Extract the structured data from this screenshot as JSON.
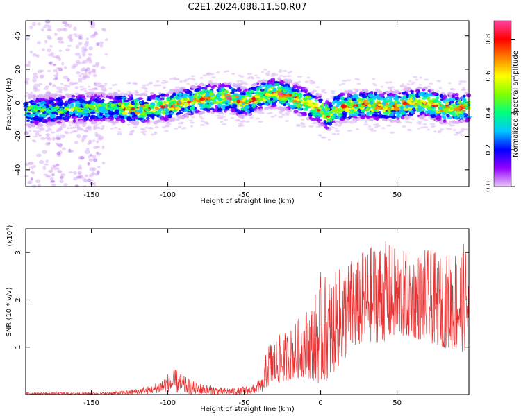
{
  "title": "C2E1.2024.088.11.50.R07",
  "chart_data": [
    {
      "type": "heatmap",
      "xlabel": "Height of straight line (km)",
      "ylabel": "Frequency (Hz)",
      "xlim": [
        -193,
        97
      ],
      "ylim": [
        -50,
        49
      ],
      "xticks": [
        -150,
        -100,
        -50,
        0,
        50
      ],
      "yticks": [
        -40,
        -20,
        0,
        20,
        40
      ],
      "colorbar": {
        "label": "Normalized spectral amplitude",
        "range": [
          0.0,
          0.9
        ],
        "ticks": [
          0.0,
          0.2,
          0.4,
          0.6,
          0.8
        ],
        "colors": [
          "#e8c8f8",
          "#9400ff",
          "#0000ff",
          "#00c8ff",
          "#00ff80",
          "#80ff00",
          "#ffff00",
          "#ff8000",
          "#ff0000",
          "#ff40a0"
        ]
      },
      "ridge": {
        "x": [
          -193,
          -170,
          -150,
          -130,
          -120,
          -110,
          -100,
          -90,
          -80,
          -70,
          -60,
          -50,
          -45,
          -40,
          -35,
          -30,
          -25,
          -20,
          -15,
          -10,
          -5,
          0,
          5,
          10,
          20,
          30,
          40,
          50,
          60,
          70,
          80,
          97
        ],
        "y": [
          -5,
          -4,
          -3,
          -3,
          -4,
          -3,
          -2,
          0,
          2,
          3,
          3,
          0,
          2,
          4,
          5,
          6,
          5,
          4,
          2,
          0,
          -2,
          -4,
          -8,
          -3,
          -2,
          -1,
          -2,
          -2,
          0,
          0,
          -3,
          -3
        ]
      },
      "ridge_max_amplitude": 0.9
    },
    {
      "type": "line",
      "xlabel": "Height of straight line (km)",
      "ylabel": "SNR (10 * v/v)",
      "y_multiplier_label": "(x10",
      "y_multiplier_exp": "4",
      "y_multiplier_close": ")",
      "xlim": [
        -193,
        97
      ],
      "ylim": [
        0,
        3.5
      ],
      "xticks": [
        -150,
        -100,
        -50,
        0,
        50
      ],
      "yticks": [
        1,
        2,
        3
      ],
      "color": "#e83030",
      "envelope": {
        "x": [
          -193,
          -160,
          -140,
          -125,
          -110,
          -100,
          -95,
          -90,
          -80,
          -65,
          -55,
          -45,
          -38,
          -35,
          -30,
          -25,
          -20,
          -15,
          -10,
          -5,
          0,
          5,
          10,
          15,
          20,
          30,
          40,
          50,
          60,
          70,
          80,
          90,
          97
        ],
        "min": [
          0.0,
          0.0,
          0.0,
          0.0,
          0.02,
          0.05,
          0.03,
          0.02,
          0.0,
          0.0,
          0.0,
          0.02,
          0.05,
          0.15,
          0.2,
          0.25,
          0.3,
          0.35,
          0.35,
          0.3,
          0.2,
          0.3,
          0.5,
          0.7,
          0.9,
          1.1,
          1.1,
          1.2,
          1.2,
          1.1,
          1.0,
          0.9,
          0.9
        ],
        "max": [
          0.05,
          0.05,
          0.05,
          0.1,
          0.2,
          0.45,
          0.55,
          0.4,
          0.25,
          0.15,
          0.15,
          0.2,
          0.35,
          1.1,
          1.2,
          1.3,
          1.4,
          1.6,
          1.8,
          2.0,
          2.6,
          2.5,
          2.6,
          2.8,
          2.9,
          3.1,
          3.3,
          3.1,
          3.0,
          3.1,
          2.9,
          3.2,
          3.2
        ]
      }
    }
  ]
}
